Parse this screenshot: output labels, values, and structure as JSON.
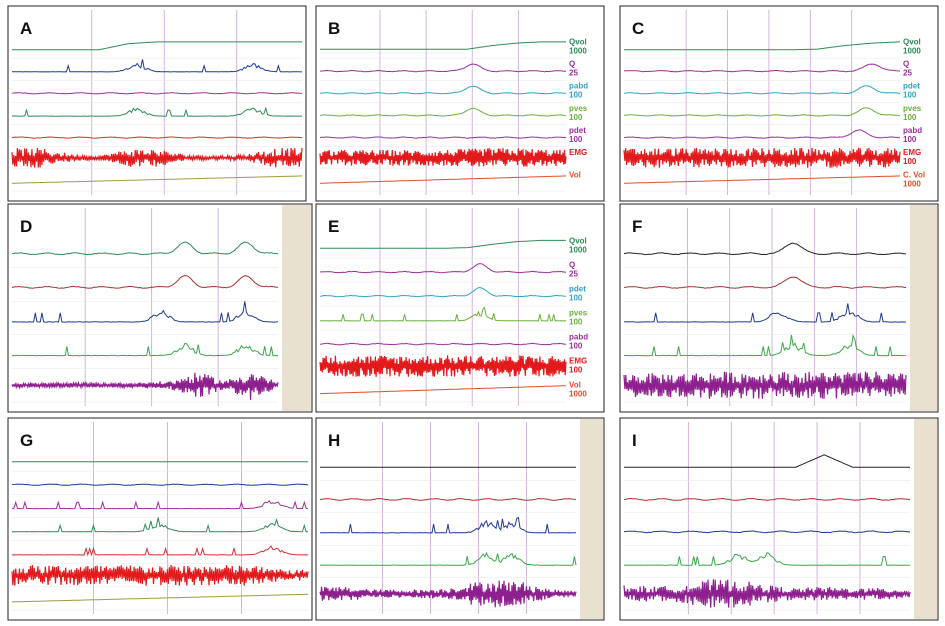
{
  "panels": [
    {
      "letter": "A",
      "traces": [
        {
          "label": "",
          "scale": "",
          "color": "#2e8b57",
          "kind": "step",
          "level": [
            0.05,
            0.05,
            0.05,
            0.05,
            0.55,
            0.7,
            0.7,
            0.7,
            0.7,
            0.7,
            0.7
          ]
        },
        {
          "label": "",
          "scale": "",
          "color": "#1f3a93",
          "kind": "spikes",
          "bumps": [
            0.43,
            0.83
          ]
        },
        {
          "label": "",
          "scale": "",
          "color": "#9b2f9b",
          "kind": "wavy"
        },
        {
          "label": "",
          "scale": "",
          "color": "#2e8b57",
          "kind": "spikes",
          "bumps": [
            0.43,
            0.83
          ]
        },
        {
          "label": "",
          "scale": "",
          "color": "#d62f2f",
          "kind": "wavy"
        },
        {
          "label": "",
          "scale": "",
          "color": "#e31a1c",
          "kind": "emg",
          "intensity": [
            1,
            1,
            0.4,
            0.2,
            0.9,
            0.9,
            0.3,
            0.2,
            0.3,
            1,
            1
          ]
        },
        {
          "label": "",
          "scale": "",
          "color": "#9c9c3a",
          "kind": "ramp"
        }
      ]
    },
    {
      "letter": "B",
      "traces": [
        {
          "label": "Qvol",
          "scale": "1000",
          "color": "#2e8b57",
          "kind": "step",
          "level": [
            0.1,
            0.1,
            0.1,
            0.1,
            0.1,
            0.1,
            0.1,
            0.4,
            0.6,
            0.7,
            0.7
          ]
        },
        {
          "label": "Q",
          "scale": "25",
          "color": "#9b2f9b",
          "kind": "wavy",
          "bumps": [
            0.62
          ]
        },
        {
          "label": "pabd",
          "scale": "100",
          "color": "#31a3c6",
          "kind": "wavy",
          "bumps": [
            0.62
          ]
        },
        {
          "label": "pves",
          "scale": "100",
          "color": "#6ab03a",
          "kind": "wavy",
          "bumps": [
            0.62
          ]
        },
        {
          "label": "pdet",
          "scale": "100",
          "color": "#9b2f9b",
          "kind": "wavy"
        },
        {
          "label": "EMG",
          "scale": "",
          "color": "#e31a1c",
          "kind": "emg",
          "intensity": [
            0.8,
            0.8,
            0.8,
            0.8,
            0.8,
            0.8,
            0.9,
            1,
            1,
            0.9,
            0.8
          ]
        },
        {
          "label": "Vol",
          "scale": "",
          "color": "#e0502a",
          "kind": "ramp"
        }
      ]
    },
    {
      "letter": "C",
      "traces": [
        {
          "label": "Qvol",
          "scale": "1000",
          "color": "#2e8b57",
          "kind": "step",
          "level": [
            0.05,
            0.05,
            0.05,
            0.05,
            0.05,
            0.05,
            0.05,
            0.1,
            0.4,
            0.6,
            0.7
          ]
        },
        {
          "label": "Q",
          "scale": "25",
          "color": "#9b2f9b",
          "kind": "wavy",
          "bumps": [
            0.9
          ]
        },
        {
          "label": "pdet",
          "scale": "100",
          "color": "#31a3c6",
          "kind": "wavy",
          "bumps": [
            0.88
          ]
        },
        {
          "label": "pves",
          "scale": "100",
          "color": "#6ab03a",
          "kind": "wavy",
          "bumps": [
            0.88
          ]
        },
        {
          "label": "pabd",
          "scale": "100",
          "color": "#9b2f9b",
          "kind": "wavy",
          "bumps": [
            0.85
          ]
        },
        {
          "label": "EMG",
          "scale": "100",
          "color": "#e31a1c",
          "kind": "emg",
          "intensity": [
            1,
            1,
            1,
            1,
            1,
            1,
            1,
            1,
            1,
            1,
            1
          ]
        },
        {
          "label": "C. Vol",
          "scale": "1000",
          "color": "#e0502a",
          "kind": "ramp"
        }
      ]
    },
    {
      "letter": "D",
      "traces": [
        {
          "label": "",
          "scale": "",
          "color": "#2e8b57",
          "kind": "wavy",
          "bumps": [
            0.65,
            0.88
          ]
        },
        {
          "label": "",
          "scale": "",
          "color": "#a83232",
          "kind": "wavy",
          "bumps": [
            0.65,
            0.88
          ]
        },
        {
          "label": "",
          "scale": "",
          "color": "#1f3a93",
          "kind": "spikes",
          "bumps": [
            0.56,
            0.88
          ]
        },
        {
          "label": "",
          "scale": "",
          "color": "#3aa84a",
          "kind": "spikes",
          "bumps": [
            0.65,
            0.88
          ]
        },
        {
          "label": "",
          "scale": "",
          "color": "#8e1f8e",
          "kind": "emg",
          "intensity": [
            0.15,
            0.15,
            0.15,
            0.15,
            0.15,
            0.2,
            0.3,
            0.9,
            0.3,
            1,
            0.2
          ]
        }
      ]
    },
    {
      "letter": "E",
      "traces": [
        {
          "label": "Qvol",
          "scale": "1000",
          "color": "#2e8b57",
          "kind": "step",
          "level": [
            0.1,
            0.1,
            0.1,
            0.1,
            0.1,
            0.1,
            0.15,
            0.4,
            0.6,
            0.7,
            0.7
          ]
        },
        {
          "label": "Q",
          "scale": "25",
          "color": "#9b2f9b",
          "kind": "wavy",
          "bumps": [
            0.65
          ]
        },
        {
          "label": "pdet",
          "scale": "100",
          "color": "#31a3c6",
          "kind": "wavy",
          "bumps": [
            0.65
          ]
        },
        {
          "label": "pves",
          "scale": "100",
          "color": "#6ab03a",
          "kind": "spikes",
          "bumps": [
            0.65
          ]
        },
        {
          "label": "pabd",
          "scale": "100",
          "color": "#9b2f9b",
          "kind": "wavy"
        },
        {
          "label": "EMG",
          "scale": "100",
          "color": "#e31a1c",
          "kind": "emg",
          "intensity": [
            1,
            1,
            1,
            1,
            1,
            1,
            1,
            1,
            1,
            1,
            1
          ]
        },
        {
          "label": "Vol",
          "scale": "1000",
          "color": "#e0502a",
          "kind": "ramp"
        }
      ]
    },
    {
      "letter": "F",
      "traces": [
        {
          "label": "",
          "scale": "",
          "color": "#222222",
          "kind": "wavy",
          "bumps": [
            0.6
          ]
        },
        {
          "label": "",
          "scale": "",
          "color": "#a83232",
          "kind": "wavy",
          "bumps": [
            0.6
          ]
        },
        {
          "label": "",
          "scale": "",
          "color": "#1f3a93",
          "kind": "spikes",
          "bumps": [
            0.55,
            0.8
          ]
        },
        {
          "label": "",
          "scale": "",
          "color": "#3aa84a",
          "kind": "spikes",
          "bumps": [
            0.6,
            0.8
          ]
        },
        {
          "label": "",
          "scale": "",
          "color": "#8e1f8e",
          "kind": "emg",
          "intensity": [
            0.8,
            0.8,
            0.8,
            0.9,
            0.9,
            0.9,
            0.9,
            0.9,
            0.9,
            0.9,
            0.8
          ]
        }
      ]
    },
    {
      "letter": "G",
      "traces": [
        {
          "label": "",
          "scale": "",
          "color": "#2e8b57",
          "kind": "step",
          "level": [
            0.1,
            0.1,
            0.1,
            0.1,
            0.1,
            0.1,
            0.1,
            0.1,
            0.1,
            0.1,
            0.1
          ]
        },
        {
          "label": "",
          "scale": "",
          "color": "#1f3a93",
          "kind": "wavy"
        },
        {
          "label": "",
          "scale": "",
          "color": "#9b2f9b",
          "kind": "spikes",
          "bumps": [
            0.88
          ]
        },
        {
          "label": "",
          "scale": "",
          "color": "#2e8b57",
          "kind": "spikes",
          "bumps": [
            0.5,
            0.88
          ]
        },
        {
          "label": "",
          "scale": "",
          "color": "#d62f2f",
          "kind": "spikes",
          "bumps": [
            0.88
          ]
        },
        {
          "label": "",
          "scale": "",
          "color": "#e31a1c",
          "kind": "emg",
          "intensity": [
            1,
            1,
            1,
            1,
            1,
            1,
            1,
            1,
            1,
            0.6,
            0.5
          ]
        },
        {
          "label": "",
          "scale": "",
          "color": "#9c9c3a",
          "kind": "ramp"
        }
      ]
    },
    {
      "letter": "H",
      "traces": [
        {
          "label": "",
          "scale": "",
          "color": "#222222",
          "kind": "step",
          "level": [
            0.1,
            0.1,
            0.1,
            0.1,
            0.1,
            0.1,
            0.1,
            0.1,
            0.1,
            0.1,
            0.1
          ]
        },
        {
          "label": "",
          "scale": "",
          "color": "#a83232",
          "kind": "wavy"
        },
        {
          "label": "",
          "scale": "",
          "color": "#1f3a93",
          "kind": "spikes",
          "bumps": [
            0.65,
            0.75
          ]
        },
        {
          "label": "",
          "scale": "",
          "color": "#3aa84a",
          "kind": "spikes",
          "bumps": [
            0.65,
            0.75
          ]
        },
        {
          "label": "",
          "scale": "",
          "color": "#8e1f8e",
          "kind": "emg",
          "intensity": [
            0.5,
            0.5,
            0.3,
            0.3,
            0.3,
            0.4,
            0.8,
            1,
            0.8,
            0.3,
            0.2
          ]
        }
      ]
    },
    {
      "letter": "I",
      "traces": [
        {
          "label": "",
          "scale": "",
          "color": "#222222",
          "kind": "step",
          "level": [
            0.1,
            0.1,
            0.1,
            0.1,
            0.1,
            0.1,
            0.1,
            0.8,
            0.1,
            0.1,
            0.1
          ]
        },
        {
          "label": "",
          "scale": "",
          "color": "#a83232",
          "kind": "wavy"
        },
        {
          "label": "",
          "scale": "",
          "color": "#1f3a93",
          "kind": "wavy"
        },
        {
          "label": "",
          "scale": "",
          "color": "#3aa84a",
          "kind": "spikes",
          "bumps": [
            0.4,
            0.5
          ]
        },
        {
          "label": "",
          "scale": "",
          "color": "#8e1f8e",
          "kind": "emg",
          "intensity": [
            0.6,
            0.5,
            0.6,
            1,
            1,
            0.6,
            0.4,
            0.5,
            0.4,
            0.4,
            0.3
          ]
        }
      ]
    }
  ]
}
